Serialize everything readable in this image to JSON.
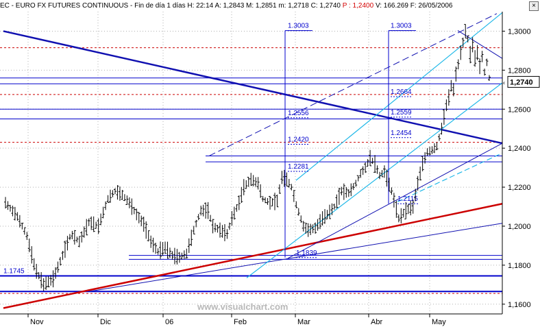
{
  "header": {
    "symbol": "EC - EURO FX FUTURES CONTINUOUS",
    "period": "Fin de día 1 días",
    "time": "H: 22:14",
    "open": "A: 1,2843",
    "high": "M: 1,2851",
    "low": "m: 1,2718",
    "close": "C: 1,2740",
    "p_value": "P : 1,2400",
    "volume": "V: 166.269",
    "date": "F: 26/05/2006",
    "close_button": "×"
  },
  "watermark": "www.visualchart.com",
  "current_price": "1,2740",
  "colors": {
    "bars": "#000000",
    "trendline_blue": "#1010b0",
    "trendline_red": "#cc0000",
    "channel_cyan": "#20b8e8",
    "level_dotted": "#cc0000",
    "grid": "#b0b0b0",
    "fib_blue": "#0000cc"
  },
  "chart_data": {
    "type": "bar",
    "title": "EC - EURO FX FUTURES CONTINUOUS",
    "ylim": [
      1.155,
      1.31
    ],
    "y_ticks": [
      "1,3000",
      "1,2800",
      "1,2600",
      "1,2400",
      "1,2200",
      "1,2000",
      "1,1800",
      "1,1600"
    ],
    "y_tick_values": [
      1.3,
      1.28,
      1.26,
      1.24,
      1.22,
      1.2,
      1.18,
      1.16
    ],
    "x_labels": [
      "Nov",
      "Dic",
      "06",
      "Feb",
      "Mar",
      "Abr",
      "May"
    ],
    "level_labels": [
      {
        "text": "1.3003",
        "value": 1.3003
      },
      {
        "text": "1.3003",
        "value": 1.3003
      },
      {
        "text": "1.2664",
        "value": 1.2664
      },
      {
        "text": "1.2559",
        "value": 1.2559
      },
      {
        "text": "1.2556",
        "value": 1.2556
      },
      {
        "text": "1.2454",
        "value": 1.2454
      },
      {
        "text": "1.2420",
        "value": 1.242
      },
      {
        "text": "1.2281",
        "value": 1.2281
      },
      {
        "text": "1.2115",
        "value": 1.2115
      },
      {
        "text": "1.1839",
        "value": 1.1839
      },
      {
        "text": "1.1745",
        "value": 1.1745
      }
    ],
    "horizontal_levels_blue": [
      1.276,
      1.273,
      1.26,
      1.255,
      1.236,
      1.233,
      1.185,
      1.183,
      1.1745,
      1.1665
    ],
    "horizontal_levels_red_dotted": [
      1.2915,
      1.2675,
      1.243,
      1.1655
    ],
    "price_path": [
      [
        0,
        1.212
      ],
      [
        10,
        1.205
      ],
      [
        18,
        1.195
      ],
      [
        25,
        1.178
      ],
      [
        32,
        1.17
      ],
      [
        40,
        1.173
      ],
      [
        48,
        1.185
      ],
      [
        55,
        1.196
      ],
      [
        62,
        1.192
      ],
      [
        70,
        1.202
      ],
      [
        78,
        1.2
      ],
      [
        86,
        1.214
      ],
      [
        92,
        1.218
      ],
      [
        98,
        1.216
      ],
      [
        104,
        1.212
      ],
      [
        110,
        1.206
      ],
      [
        116,
        1.201
      ],
      [
        122,
        1.192
      ],
      [
        128,
        1.187
      ],
      [
        134,
        1.189
      ],
      [
        140,
        1.185
      ],
      [
        146,
        1.184
      ],
      [
        152,
        1.186
      ],
      [
        158,
        1.198
      ],
      [
        164,
        1.208
      ],
      [
        170,
        1.208
      ],
      [
        174,
        1.2
      ],
      [
        180,
        1.198
      ],
      [
        186,
        1.196
      ],
      [
        190,
        1.204
      ],
      [
        196,
        1.212
      ],
      [
        200,
        1.22
      ],
      [
        206,
        1.224
      ],
      [
        212,
        1.222
      ],
      [
        216,
        1.214
      ],
      [
        222,
        1.212
      ],
      [
        228,
        1.213
      ],
      [
        232,
        1.225
      ],
      [
        236,
        1.224
      ],
      [
        240,
        1.22
      ],
      [
        244,
        1.211
      ],
      [
        250,
        1.2
      ],
      [
        254,
        1.198
      ],
      [
        260,
        1.199
      ],
      [
        266,
        1.204
      ],
      [
        270,
        1.206
      ],
      [
        276,
        1.21
      ],
      [
        282,
        1.218
      ],
      [
        288,
        1.217
      ],
      [
        294,
        1.222
      ],
      [
        298,
        1.227
      ],
      [
        302,
        1.23
      ],
      [
        306,
        1.235
      ],
      [
        310,
        1.232
      ],
      [
        314,
        1.226
      ],
      [
        318,
        1.228
      ],
      [
        324,
        1.218
      ],
      [
        330,
        1.204
      ],
      [
        336,
        1.208
      ],
      [
        342,
        1.21
      ],
      [
        346,
        1.222
      ],
      [
        350,
        1.232
      ],
      [
        354,
        1.238
      ],
      [
        358,
        1.239
      ],
      [
        362,
        1.241
      ],
      [
        366,
        1.25
      ]
    ]
  }
}
